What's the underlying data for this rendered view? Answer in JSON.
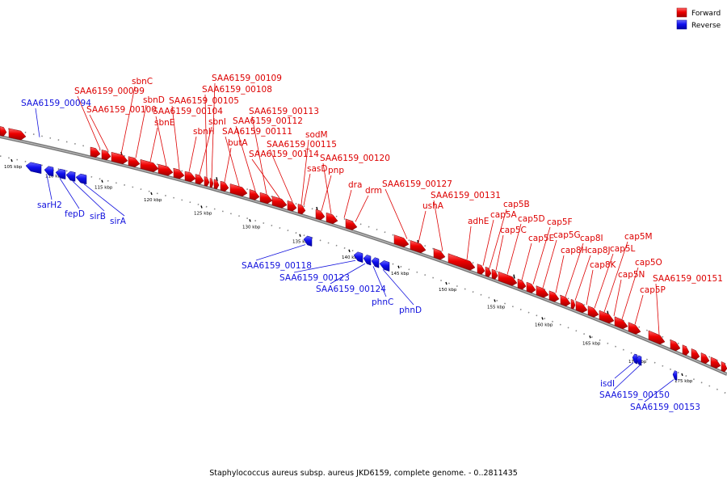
{
  "caption": "Staphylococcus aureus subsp. aureus JKD6159, complete genome. - 0..2811435",
  "colors": {
    "forward": "#ee0000",
    "reverse": "#1010ee",
    "backbone": "#777777"
  },
  "legend": {
    "forward": "Forward",
    "reverse": "Reverse"
  },
  "ticks": [
    {
      "label": "105 kbp"
    },
    {
      "label": "110 kbp"
    },
    {
      "label": "115 kbp"
    },
    {
      "label": "120 kbp"
    },
    {
      "label": "125 kbp"
    },
    {
      "label": "130 kbp"
    },
    {
      "label": "135 kbp"
    },
    {
      "label": "140 kbp"
    },
    {
      "label": "145 kbp"
    },
    {
      "label": "150 kbp"
    },
    {
      "label": "155 kbp"
    },
    {
      "label": "160 kbp"
    },
    {
      "label": "165 kbp"
    },
    {
      "label": "170 kbp"
    },
    {
      "label": "175 kbp"
    }
  ],
  "forward_genes": [
    "SAA6159_00099",
    "SAA6159_00100",
    "sbnC",
    "sbnD",
    "sbnE",
    "SAA6159_00104",
    "SAA6159_00105",
    "sbnH",
    "sbnI",
    "SAA6159_00108",
    "SAA6159_00109",
    "butA",
    "SAA6159_00111",
    "SAA6159_00112",
    "SAA6159_00113",
    "SAA6159_00114",
    "SAA6159_00115",
    "sodM",
    "sasD",
    "pnp",
    "SAA6159_00120",
    "dra",
    "drm",
    "SAA6159_00127",
    "ushA",
    "SAA6159_00131",
    "adhE",
    "cap5A",
    "cap5B",
    "cap5C",
    "cap5D",
    "cap5E",
    "cap5F",
    "cap5G",
    "cap8H",
    "cap8I",
    "cap8J",
    "cap8K",
    "cap5L",
    "cap5M",
    "cap5N",
    "cap5O",
    "cap5P",
    "SAA6159_00151"
  ],
  "reverse_genes": [
    "SAA6159_00094",
    "sarH2",
    "fepD",
    "sirB",
    "sirA",
    "SAA6159_00118",
    "SAA6159_00123",
    "SAA6159_00124",
    "phnC",
    "phnD",
    "isdI",
    "SAA6159_00150",
    "SAA6159_00153"
  ]
}
